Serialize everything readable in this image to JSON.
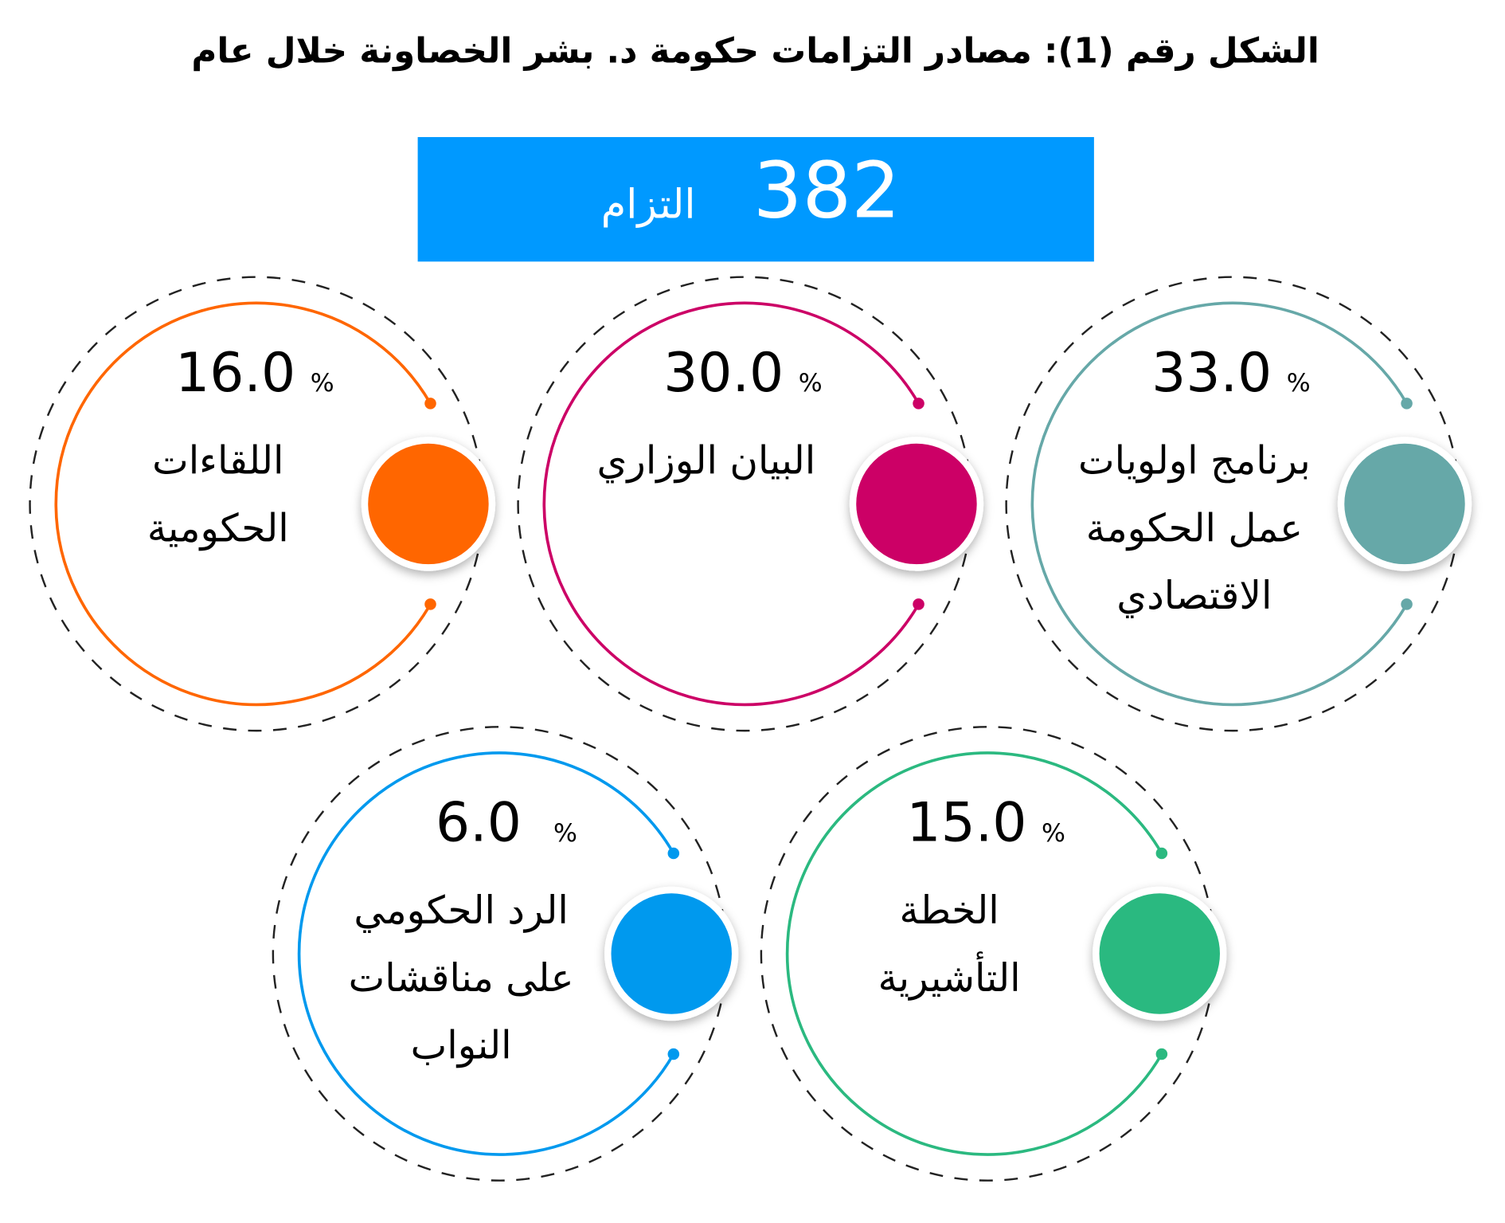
{
  "title": "الشكل رقم (1): مصادر التزامات حكومة د. بشر الخصاونة خلال عام",
  "total": {
    "value": "382",
    "label": "التزام",
    "color": "#0099ff"
  },
  "items": [
    {
      "percent": "33.0",
      "unit": "%",
      "label": [
        "برنامج اولويات",
        "عمل الحكومة",
        "الاقتصادي"
      ],
      "color": "#66a8a8"
    },
    {
      "percent": "30.0",
      "unit": "%",
      "label": [
        "البيان الوزاري"
      ],
      "color": "#cc0066"
    },
    {
      "percent": "16.0",
      "unit": "%",
      "label": [
        "اللقاءات",
        "الحكومية"
      ],
      "color": "#ff6600"
    },
    {
      "percent": "15.0",
      "unit": "%",
      "label": [
        "الخطة",
        "التأشيرية"
      ],
      "color": "#2bb980"
    },
    {
      "percent": "6.0",
      "unit": "%",
      "label": [
        "الرد الحكومي",
        "على مناقشات",
        "النواب"
      ],
      "color": "#0099ee"
    }
  ]
}
